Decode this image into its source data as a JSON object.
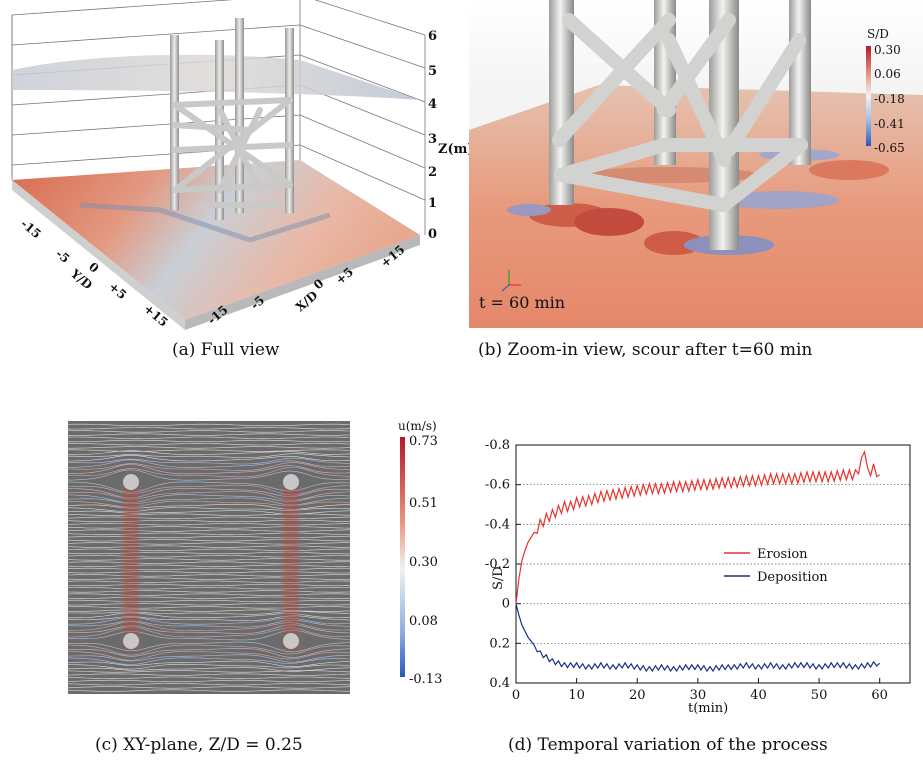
{
  "panel_a": {
    "caption": "(a) Full view",
    "z_axis_label": "Z(m)",
    "z_ticks": [
      "0",
      "1",
      "2",
      "3",
      "4",
      "5",
      "6"
    ],
    "y_axis_label": "Y/D",
    "y_ticks": [
      "-15",
      "-5",
      "0",
      "+5",
      "+15"
    ],
    "x_axis_label": "X/D",
    "x_ticks": [
      "-15",
      "-5",
      "0",
      "+5",
      "+15"
    ]
  },
  "panel_b": {
    "caption": "(b) Zoom-in view, scour after t=60 min",
    "time_label": "t = 60 min",
    "colorbar_title": "S/D",
    "colorbar_ticks": [
      "0.30",
      "0.06",
      "-0.18",
      "-0.41",
      "-0.65"
    ],
    "colors": {
      "high": "#b2182b",
      "mid": "#f7f7f7",
      "low": "#2166ac"
    }
  },
  "panel_c": {
    "caption": "(c) XY-plane, Z/D = 0.25",
    "colorbar_title": "u(m/s)",
    "colorbar_ticks": [
      "0.73",
      "0.51",
      "0.30",
      "0.08",
      "-0.13"
    ]
  },
  "panel_d": {
    "caption": "(d) Temporal variation of the process",
    "legend_erosion": "Erosion",
    "legend_deposition": "Deposition"
  },
  "chart_data": {
    "type": "line",
    "xlabel": "t(min)",
    "ylabel": "S/D",
    "xlim": [
      0,
      65
    ],
    "ylim": [
      0.4,
      -0.8
    ],
    "x_ticks": [
      "0",
      "10",
      "20",
      "30",
      "40",
      "50",
      "60"
    ],
    "y_ticks": [
      "-0.8",
      "-0.6",
      "-0.4",
      "-0.2",
      "0",
      "0.2",
      "0.4"
    ],
    "grid": "horizontal dotted",
    "legend": "right",
    "series": [
      {
        "name": "Erosion",
        "color": "#e8322a",
        "x": [
          0,
          0.5,
          1,
          1.5,
          2,
          3,
          4,
          5,
          6,
          7,
          8,
          9,
          10,
          12,
          14,
          16,
          18,
          20,
          22,
          24,
          26,
          28,
          30,
          32,
          34,
          36,
          38,
          40,
          42,
          44,
          46,
          48,
          50,
          52,
          54,
          56,
          57.5,
          58,
          59,
          60
        ],
        "y": [
          0,
          -0.13,
          -0.22,
          -0.27,
          -0.31,
          -0.36,
          -0.4,
          -0.43,
          -0.45,
          -0.47,
          -0.49,
          -0.49,
          -0.51,
          -0.52,
          -0.54,
          -0.55,
          -0.56,
          -0.57,
          -0.58,
          -0.58,
          -0.59,
          -0.59,
          -0.6,
          -0.6,
          -0.61,
          -0.61,
          -0.62,
          -0.62,
          -0.63,
          -0.63,
          -0.63,
          -0.64,
          -0.64,
          -0.64,
          -0.65,
          -0.65,
          -0.74,
          -0.66,
          -0.68,
          -0.65
        ]
      },
      {
        "name": "Deposition",
        "color": "#1a2f8a",
        "x": [
          0,
          0.5,
          1,
          2,
          3,
          4,
          5,
          6,
          7,
          8,
          10,
          12,
          14,
          16,
          18,
          20,
          22,
          24,
          26,
          28,
          30,
          32,
          34,
          36,
          38,
          40,
          42,
          44,
          46,
          48,
          50,
          52,
          54,
          56,
          58,
          60
        ],
        "y": [
          0,
          0.06,
          0.11,
          0.17,
          0.21,
          0.25,
          0.27,
          0.29,
          0.3,
          0.31,
          0.31,
          0.32,
          0.31,
          0.32,
          0.31,
          0.32,
          0.33,
          0.32,
          0.33,
          0.32,
          0.32,
          0.33,
          0.32,
          0.32,
          0.31,
          0.32,
          0.31,
          0.32,
          0.31,
          0.31,
          0.32,
          0.31,
          0.31,
          0.32,
          0.31,
          0.3
        ]
      }
    ]
  }
}
